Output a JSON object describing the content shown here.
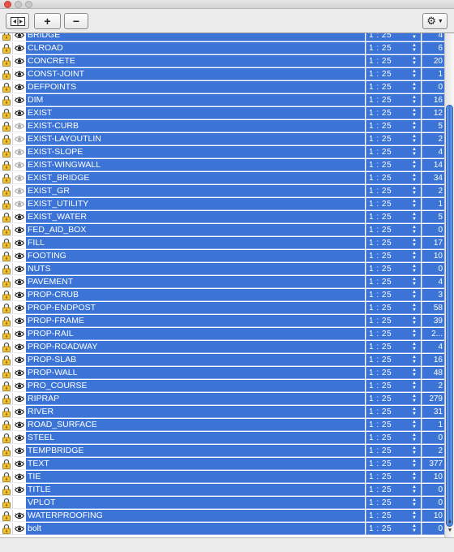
{
  "toolbar": {
    "toggle_icon": "split-view-icon",
    "add_label": "+",
    "remove_label": "−",
    "settings_icon": "gear-icon",
    "settings_glyph": "⚙",
    "dropdown_glyph": "▼"
  },
  "colors": {
    "selection": "#3b74d6",
    "lock": "#f2c230"
  },
  "layers": [
    {
      "name": "BRIDGE",
      "scale": "1 : 25",
      "count": "4",
      "visible": true
    },
    {
      "name": "CLROAD",
      "scale": "1 : 25",
      "count": "6",
      "visible": true
    },
    {
      "name": "CONCRETE",
      "scale": "1 : 25",
      "count": "20",
      "visible": true
    },
    {
      "name": "CONST-JOINT",
      "scale": "1 : 25",
      "count": "1",
      "visible": true
    },
    {
      "name": "DEFPOINTS",
      "scale": "1 : 25",
      "count": "0",
      "visible": true
    },
    {
      "name": "DIM",
      "scale": "1 : 25",
      "count": "16",
      "visible": true
    },
    {
      "name": "EXIST",
      "scale": "1 : 25",
      "count": "12",
      "visible": true
    },
    {
      "name": "EXIST-CURB",
      "scale": "1 : 25",
      "count": "5",
      "visible": false
    },
    {
      "name": "EXIST-LAYOUTLIN",
      "scale": "1 : 25",
      "count": "2",
      "visible": false
    },
    {
      "name": "EXIST-SLOPE",
      "scale": "1 : 25",
      "count": "4",
      "visible": false
    },
    {
      "name": "EXIST-WINGWALL",
      "scale": "1 : 25",
      "count": "14",
      "visible": false
    },
    {
      "name": "EXIST_BRIDGE",
      "scale": "1 : 25",
      "count": "34",
      "visible": false
    },
    {
      "name": "EXIST_GR",
      "scale": "1 : 25",
      "count": "2",
      "visible": false
    },
    {
      "name": "EXIST_UTILITY",
      "scale": "1 : 25",
      "count": "1",
      "visible": false
    },
    {
      "name": "EXIST_WATER",
      "scale": "1 : 25",
      "count": "5",
      "visible": true
    },
    {
      "name": "FED_AID_BOX",
      "scale": "1 : 25",
      "count": "0",
      "visible": true
    },
    {
      "name": "FILL",
      "scale": "1 : 25",
      "count": "17",
      "visible": true
    },
    {
      "name": "FOOTING",
      "scale": "1 : 25",
      "count": "10",
      "visible": true
    },
    {
      "name": "NUTS",
      "scale": "1 : 25",
      "count": "0",
      "visible": true
    },
    {
      "name": "PAVEMENT",
      "scale": "1 : 25",
      "count": "4",
      "visible": true
    },
    {
      "name": "PROP-CRUB",
      "scale": "1 : 25",
      "count": "3",
      "visible": true
    },
    {
      "name": "PROP-ENDPOST",
      "scale": "1 : 25",
      "count": "58",
      "visible": true
    },
    {
      "name": "PROP-FRAME",
      "scale": "1 : 25",
      "count": "39",
      "visible": true
    },
    {
      "name": "PROP-RAIL",
      "scale": "1 : 25",
      "count": "2...",
      "visible": true
    },
    {
      "name": "PROP-ROADWAY",
      "scale": "1 : 25",
      "count": "4",
      "visible": true
    },
    {
      "name": "PROP-SLAB",
      "scale": "1 : 25",
      "count": "16",
      "visible": true
    },
    {
      "name": "PROP-WALL",
      "scale": "1 : 25",
      "count": "48",
      "visible": true
    },
    {
      "name": "PRO_COURSE",
      "scale": "1 : 25",
      "count": "2",
      "visible": true
    },
    {
      "name": "RIPRAP",
      "scale": "1 : 25",
      "count": "279",
      "visible": true
    },
    {
      "name": "RIVER",
      "scale": "1 : 25",
      "count": "31",
      "visible": true
    },
    {
      "name": "ROAD_SURFACE",
      "scale": "1 : 25",
      "count": "1",
      "visible": true
    },
    {
      "name": "STEEL",
      "scale": "1 : 25",
      "count": "0",
      "visible": true
    },
    {
      "name": "TEMPBRIDGE",
      "scale": "1 : 25",
      "count": "2",
      "visible": true
    },
    {
      "name": "TEXT",
      "scale": "1 : 25",
      "count": "377",
      "visible": true
    },
    {
      "name": "TIE",
      "scale": "1 : 25",
      "count": "10",
      "visible": true
    },
    {
      "name": "TITLE",
      "scale": "1 : 25",
      "count": "0",
      "visible": true
    },
    {
      "name": "VPLOT",
      "scale": "1 : 25",
      "count": "0",
      "visible": null
    },
    {
      "name": "WATERPROOFING",
      "scale": "1 : 25",
      "count": "10",
      "visible": true
    },
    {
      "name": "bolt",
      "scale": "1 : 25",
      "count": "0",
      "visible": true
    }
  ]
}
